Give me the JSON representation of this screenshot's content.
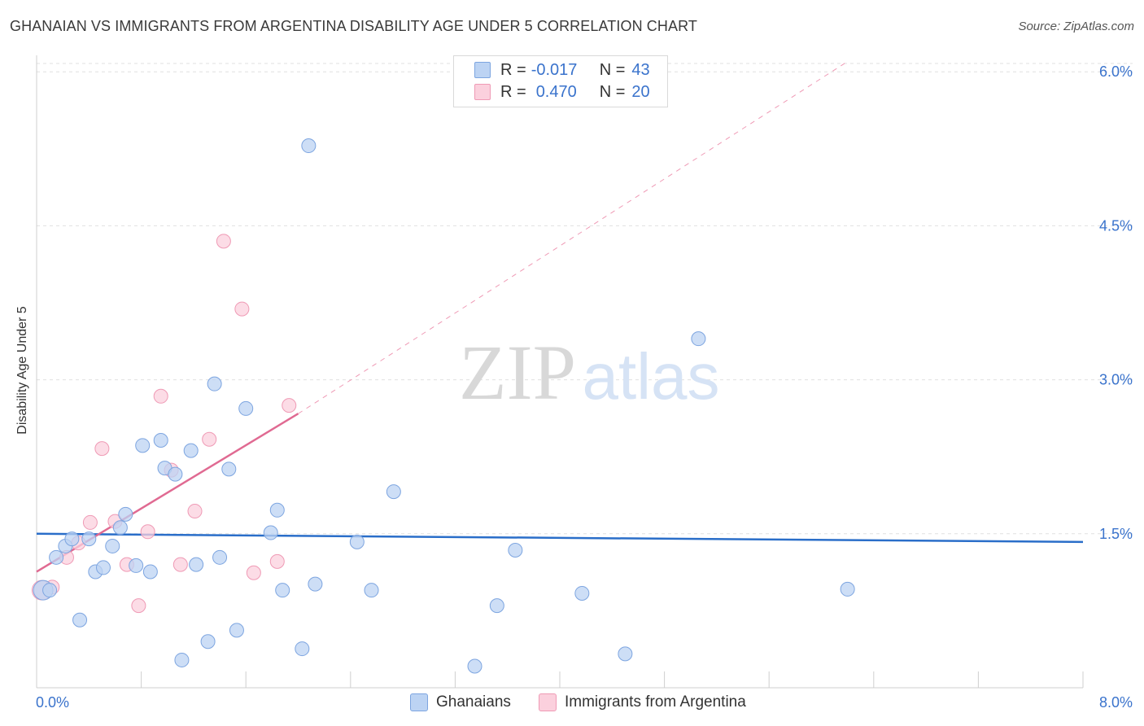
{
  "title": "GHANAIAN VS IMMIGRANTS FROM ARGENTINA DISABILITY AGE UNDER 5 CORRELATION CHART",
  "source": "Source: ZipAtlas.com",
  "watermark": {
    "zip": "ZIP",
    "atlas": "atlas"
  },
  "legend": {
    "r_label": "R =",
    "n_label": "N =",
    "rows": [
      {
        "name": "Ghanaians",
        "r": "-0.017",
        "n": "43",
        "color": "#7da5e0"
      },
      {
        "name": "Immigrants from Argentina",
        "r": "0.470",
        "n": "20",
        "color": "#ef9ab5"
      }
    ]
  },
  "chart_data": {
    "type": "scatter",
    "title": "GHANAIAN VS IMMIGRANTS FROM ARGENTINA DISABILITY AGE UNDER 5 CORRELATION CHART",
    "xlabel": "",
    "ylabel": "Disability Age Under 5",
    "xlim": [
      0,
      8
    ],
    "ylim": [
      0,
      6.2
    ],
    "x_tick_labels": [
      "0.0%",
      "8.0%"
    ],
    "y_ticks": [
      1.5,
      3.0,
      4.5,
      6.0
    ],
    "y_tick_labels": [
      "1.5%",
      "3.0%",
      "4.5%",
      "6.0%"
    ],
    "grid": true,
    "series": [
      {
        "name": "Ghanaians",
        "color": "#7da5e0",
        "fill": "#bcd3f3",
        "points": [
          {
            "x": 0.05,
            "y": 0.95
          },
          {
            "x": 0.1,
            "y": 0.95
          },
          {
            "x": 0.15,
            "y": 1.27
          },
          {
            "x": 0.22,
            "y": 1.38
          },
          {
            "x": 0.27,
            "y": 1.45
          },
          {
            "x": 0.33,
            "y": 0.66
          },
          {
            "x": 0.4,
            "y": 1.45
          },
          {
            "x": 0.45,
            "y": 1.13
          },
          {
            "x": 0.51,
            "y": 1.17
          },
          {
            "x": 0.58,
            "y": 1.38
          },
          {
            "x": 0.64,
            "y": 1.56
          },
          {
            "x": 0.68,
            "y": 1.69
          },
          {
            "x": 0.76,
            "y": 1.19
          },
          {
            "x": 0.81,
            "y": 2.36
          },
          {
            "x": 0.87,
            "y": 1.13
          },
          {
            "x": 0.95,
            "y": 2.41
          },
          {
            "x": 0.98,
            "y": 2.14
          },
          {
            "x": 1.06,
            "y": 2.08
          },
          {
            "x": 1.11,
            "y": 0.27
          },
          {
            "x": 1.18,
            "y": 2.31
          },
          {
            "x": 1.22,
            "y": 1.2
          },
          {
            "x": 1.31,
            "y": 0.45
          },
          {
            "x": 1.36,
            "y": 2.96
          },
          {
            "x": 1.4,
            "y": 1.27
          },
          {
            "x": 1.47,
            "y": 2.13
          },
          {
            "x": 1.53,
            "y": 0.56
          },
          {
            "x": 1.6,
            "y": 2.72
          },
          {
            "x": 1.79,
            "y": 1.51
          },
          {
            "x": 1.84,
            "y": 1.73
          },
          {
            "x": 1.88,
            "y": 0.95
          },
          {
            "x": 2.03,
            "y": 0.38
          },
          {
            "x": 2.08,
            "y": 5.28
          },
          {
            "x": 2.13,
            "y": 1.01
          },
          {
            "x": 2.45,
            "y": 1.42
          },
          {
            "x": 2.56,
            "y": 0.95
          },
          {
            "x": 2.73,
            "y": 1.91
          },
          {
            "x": 3.35,
            "y": 0.21
          },
          {
            "x": 3.52,
            "y": 0.8
          },
          {
            "x": 3.66,
            "y": 1.34
          },
          {
            "x": 4.17,
            "y": 0.92
          },
          {
            "x": 4.5,
            "y": 0.33
          },
          {
            "x": 5.06,
            "y": 3.4
          },
          {
            "x": 6.2,
            "y": 0.96
          }
        ]
      },
      {
        "name": "Immigrants from Argentina",
        "color": "#ef9ab5",
        "fill": "#fbd0dd",
        "points": [
          {
            "x": 0.04,
            "y": 0.95
          },
          {
            "x": 0.12,
            "y": 0.98
          },
          {
            "x": 0.23,
            "y": 1.27
          },
          {
            "x": 0.32,
            "y": 1.41
          },
          {
            "x": 0.41,
            "y": 1.61
          },
          {
            "x": 0.5,
            "y": 2.33
          },
          {
            "x": 0.6,
            "y": 1.62
          },
          {
            "x": 0.69,
            "y": 1.2
          },
          {
            "x": 0.78,
            "y": 0.8
          },
          {
            "x": 0.85,
            "y": 1.52
          },
          {
            "x": 0.95,
            "y": 2.84
          },
          {
            "x": 1.03,
            "y": 2.12
          },
          {
            "x": 1.1,
            "y": 1.2
          },
          {
            "x": 1.21,
            "y": 1.72
          },
          {
            "x": 1.32,
            "y": 2.42
          },
          {
            "x": 1.43,
            "y": 4.35
          },
          {
            "x": 1.57,
            "y": 3.69
          },
          {
            "x": 1.66,
            "y": 1.12
          },
          {
            "x": 1.84,
            "y": 1.23
          },
          {
            "x": 1.93,
            "y": 2.75
          }
        ]
      }
    ],
    "trend_lines": [
      {
        "series": "Ghanaians",
        "x": [
          0.0,
          8.0
        ],
        "y": [
          1.5,
          1.42
        ],
        "style": "solid"
      },
      {
        "series": "Immigrants from Argentina",
        "x": [
          0.0,
          2.0
        ],
        "y": [
          1.13,
          2.67
        ],
        "style": "solid"
      },
      {
        "series": "Immigrants from Argentina",
        "x": [
          2.0,
          6.2
        ],
        "y": [
          2.67,
          6.1
        ],
        "style": "dashed"
      }
    ],
    "legend_position": "top-center"
  }
}
